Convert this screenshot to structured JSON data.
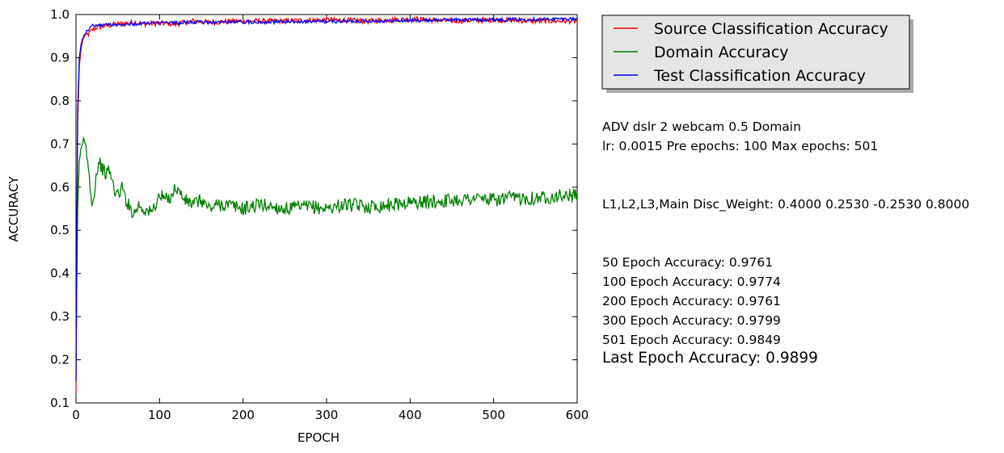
{
  "chart_data": {
    "type": "line",
    "xlabel": "EPOCH",
    "ylabel": "ACCURACY",
    "xlim": [
      0,
      600
    ],
    "ylim": [
      0.1,
      1.0
    ],
    "x_ticks": [
      0,
      100,
      200,
      300,
      400,
      500,
      600
    ],
    "y_ticks": [
      0.1,
      0.2,
      0.3,
      0.4,
      0.5,
      0.6,
      0.7,
      0.8,
      0.9,
      1.0
    ],
    "x_tick_labels": [
      "0",
      "100",
      "200",
      "300",
      "400",
      "500",
      "600"
    ],
    "y_tick_labels": [
      "0.1",
      "0.2",
      "0.3",
      "0.4",
      "0.5",
      "0.6",
      "0.7",
      "0.8",
      "0.9",
      "1.0"
    ],
    "grid": false,
    "legend_position": "outside-top-right",
    "series": [
      {
        "name": "Source Classification Accuracy",
        "color": "#ff0000",
        "x": [
          0,
          2,
          4,
          6,
          8,
          10,
          15,
          20,
          25,
          30,
          40,
          50,
          60,
          70,
          80,
          100,
          120,
          140,
          160,
          200,
          250,
          300,
          350,
          400,
          450,
          500,
          550,
          600
        ],
        "y": [
          0.12,
          0.75,
          0.88,
          0.92,
          0.94,
          0.95,
          0.955,
          0.965,
          0.97,
          0.972,
          0.975,
          0.978,
          0.98,
          0.982,
          0.978,
          0.98,
          0.978,
          0.985,
          0.982,
          0.985,
          0.985,
          0.988,
          0.985,
          0.99,
          0.985,
          0.988,
          0.985,
          0.985
        ]
      },
      {
        "name": "Domain Accuracy",
        "color": "#008000",
        "x": [
          0,
          2,
          4,
          6,
          8,
          10,
          12,
          15,
          18,
          20,
          25,
          28,
          30,
          35,
          40,
          45,
          50,
          55,
          60,
          65,
          70,
          75,
          80,
          90,
          100,
          110,
          120,
          130,
          140,
          150,
          160,
          170,
          180,
          200,
          220,
          250,
          280,
          300,
          320,
          350,
          380,
          400,
          420,
          450,
          480,
          500,
          520,
          550,
          580,
          600
        ],
        "y": [
          0.2,
          0.55,
          0.66,
          0.69,
          0.7,
          0.7,
          0.69,
          0.64,
          0.58,
          0.56,
          0.64,
          0.66,
          0.65,
          0.63,
          0.64,
          0.6,
          0.58,
          0.6,
          0.57,
          0.55,
          0.54,
          0.56,
          0.55,
          0.54,
          0.58,
          0.57,
          0.6,
          0.57,
          0.56,
          0.57,
          0.55,
          0.56,
          0.56,
          0.55,
          0.56,
          0.55,
          0.555,
          0.55,
          0.56,
          0.555,
          0.56,
          0.565,
          0.565,
          0.57,
          0.575,
          0.57,
          0.575,
          0.575,
          0.58,
          0.58
        ]
      },
      {
        "name": "Test Classification Accuracy",
        "color": "#0000ff",
        "x": [
          0,
          2,
          4,
          6,
          8,
          10,
          15,
          20,
          25,
          30,
          40,
          50,
          60,
          70,
          80,
          100,
          120,
          140,
          160,
          200,
          250,
          300,
          350,
          400,
          450,
          500,
          550,
          600
        ],
        "y": [
          0.15,
          0.78,
          0.9,
          0.93,
          0.945,
          0.955,
          0.965,
          0.975,
          0.975,
          0.975,
          0.977,
          0.977,
          0.978,
          0.978,
          0.98,
          0.98,
          0.981,
          0.982,
          0.982,
          0.983,
          0.983,
          0.984,
          0.985,
          0.986,
          0.988,
          0.988,
          0.989,
          0.99
        ]
      }
    ]
  },
  "info": {
    "run_line1": "ADV dslr 2 webcam 0.5 Domain",
    "run_line2": "lr: 0.0015 Pre epochs: 100 Max epochs: 501",
    "weights_line": "L1,L2,L3,Main Disc_Weight: 0.4000 0.2530 -0.2530 0.8000",
    "acc_50": "50 Epoch Accuracy: 0.9761",
    "acc_100": "100 Epoch Accuracy: 0.9774",
    "acc_200": "200 Epoch Accuracy: 0.9761",
    "acc_300": "300 Epoch Accuracy: 0.9799",
    "acc_501": "501 Epoch Accuracy: 0.9849",
    "acc_last": "Last Epoch Accuracy: 0.9899"
  }
}
